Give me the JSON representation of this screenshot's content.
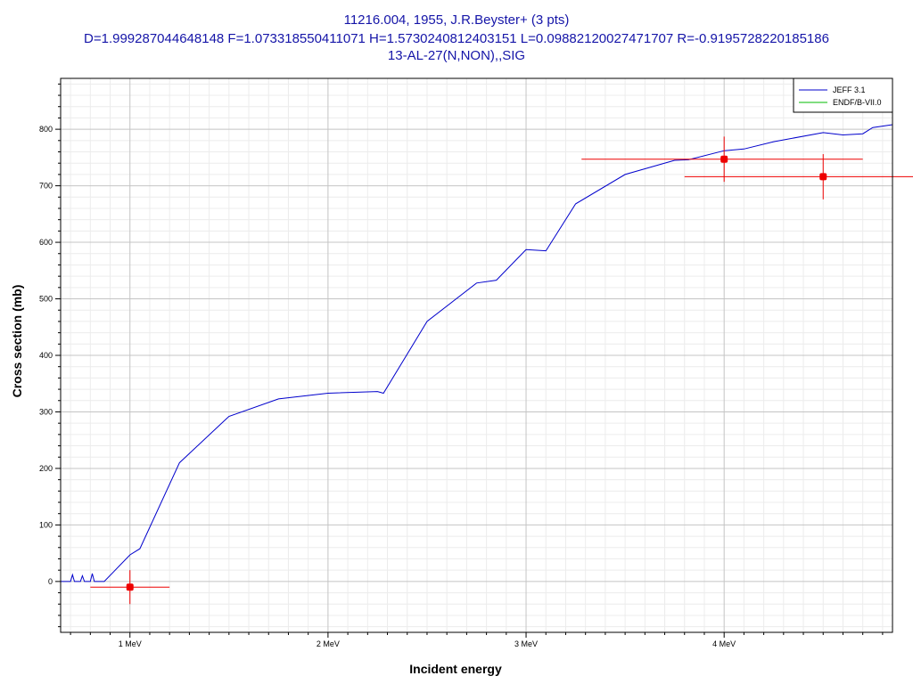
{
  "chart_data": {
    "type": "line",
    "title": "11216.004, 1955, J.R.Beyster+ (3 pts)",
    "subtitle": "D=1.999287044648148 F=1.073318550411071 H=1.5730240812403151 L=0.09882120027471707 R=-0.9195728220185186",
    "subtitle2": "13-AL-27(N,NON),,SIG",
    "xlabel": "Incident energy",
    "ylabel": "Cross section (mb)",
    "xlim": [
      0.65,
      4.85
    ],
    "ylim": [
      -90,
      890
    ],
    "grid": true,
    "legend_position": "top-right",
    "x_tick_values": [
      1,
      2,
      3,
      4
    ],
    "x_tick_labels": [
      "1 MeV",
      "2 MeV",
      "3 MeV",
      "4 MeV"
    ],
    "y_tick_values": [
      0,
      100,
      200,
      300,
      400,
      500,
      600,
      700,
      800
    ],
    "y_tick_labels": [
      "0",
      "100",
      "200",
      "300",
      "400",
      "500",
      "600",
      "700",
      "800"
    ],
    "series": [
      {
        "name": "JEFF 3.1",
        "color": "#0000cc",
        "x": [
          0.65,
          0.7,
          0.71,
          0.72,
          0.75,
          0.76,
          0.77,
          0.8,
          0.81,
          0.82,
          0.85,
          0.87,
          1.0,
          1.05,
          1.25,
          1.5,
          1.75,
          2.0,
          2.25,
          2.28,
          2.5,
          2.75,
          2.85,
          3.0,
          3.1,
          3.25,
          3.5,
          3.75,
          3.82,
          4.0,
          4.1,
          4.25,
          4.5,
          4.6,
          4.7,
          4.75,
          4.85
        ],
        "y": [
          0,
          0,
          12,
          0,
          0,
          10,
          0,
          0,
          14,
          0,
          0,
          0,
          47,
          58,
          210,
          292,
          323,
          333,
          336,
          333,
          460,
          528,
          533,
          587,
          585,
          668,
          720,
          745,
          746,
          762,
          765,
          778,
          794,
          790,
          792,
          803,
          808
        ]
      },
      {
        "name": "ENDF/B-VII.0",
        "color": "#00bb00",
        "x": [],
        "y": []
      }
    ],
    "points": {
      "color": "#ee0000",
      "x": [
        1.0,
        4.0,
        4.5
      ],
      "y": [
        -10,
        747,
        716
      ],
      "xerr_low": [
        0.2,
        0.72,
        0.7
      ],
      "xerr_high": [
        0.2,
        0.7,
        0.72
      ],
      "yerr": [
        30,
        40,
        40
      ]
    }
  }
}
